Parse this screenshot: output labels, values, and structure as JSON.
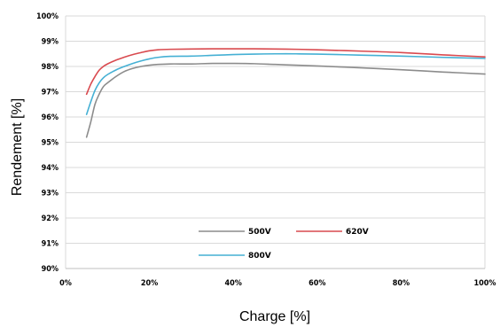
{
  "chart_data": {
    "type": "line",
    "xlabel": "Charge [%]",
    "ylabel": "Rendement [%]",
    "xlim": [
      0,
      100
    ],
    "ylim": [
      90,
      100
    ],
    "x_ticks": [
      "0%",
      "20%",
      "40%",
      "60%",
      "80%",
      "100%"
    ],
    "y_ticks": [
      "90%",
      "91%",
      "92%",
      "93%",
      "94%",
      "95%",
      "96%",
      "97%",
      "98%",
      "99%",
      "100%"
    ],
    "grid": "horizontal",
    "legend_position": "bottom-center",
    "series": [
      {
        "name": "500V",
        "color": "#8c8c8c",
        "x": [
          5,
          6,
          7,
          8,
          9,
          10,
          12,
          14,
          16,
          18,
          20,
          22,
          25,
          30,
          35,
          40,
          45,
          50,
          55,
          60,
          70,
          80,
          90,
          100
        ],
        "y": [
          95.2,
          95.8,
          96.5,
          96.9,
          97.2,
          97.35,
          97.6,
          97.8,
          97.92,
          98.0,
          98.05,
          98.08,
          98.1,
          98.1,
          98.12,
          98.12,
          98.11,
          98.08,
          98.05,
          98.02,
          97.95,
          97.87,
          97.78,
          97.7
        ]
      },
      {
        "name": "620V",
        "color": "#d94a4f",
        "x": [
          5,
          6,
          7,
          8,
          9,
          10,
          12,
          14,
          16,
          18,
          20,
          22,
          25,
          30,
          35,
          40,
          45,
          50,
          55,
          60,
          70,
          80,
          90,
          100
        ],
        "y": [
          96.9,
          97.3,
          97.6,
          97.85,
          98.0,
          98.1,
          98.25,
          98.37,
          98.47,
          98.55,
          98.62,
          98.66,
          98.68,
          98.69,
          98.7,
          98.7,
          98.7,
          98.69,
          98.68,
          98.66,
          98.61,
          98.55,
          98.46,
          98.38
        ]
      },
      {
        "name": "800V",
        "color": "#45b0d4",
        "x": [
          5,
          6,
          7,
          8,
          9,
          10,
          12,
          14,
          16,
          18,
          20,
          22,
          25,
          30,
          35,
          40,
          45,
          50,
          55,
          60,
          70,
          80,
          90,
          100
        ],
        "y": [
          96.1,
          96.6,
          97.05,
          97.35,
          97.55,
          97.68,
          97.86,
          98.0,
          98.12,
          98.22,
          98.3,
          98.36,
          98.4,
          98.41,
          98.44,
          98.47,
          98.49,
          98.5,
          98.5,
          98.49,
          98.45,
          98.41,
          98.36,
          98.32
        ]
      }
    ]
  }
}
